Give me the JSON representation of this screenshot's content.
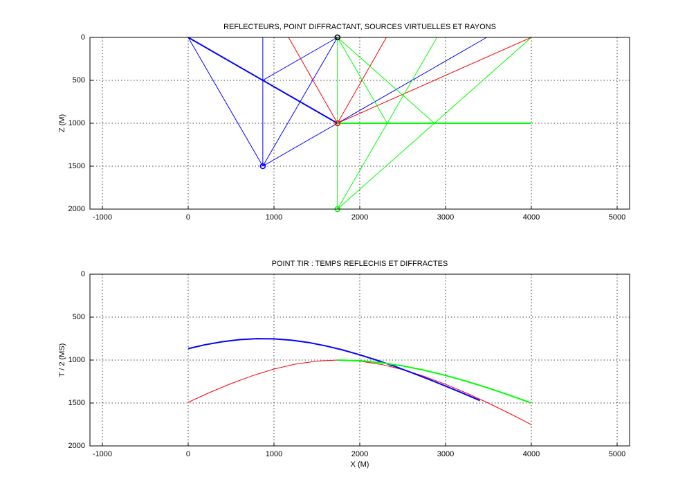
{
  "chart_data": [
    {
      "type": "line",
      "title": "REFLECTEURS, POINT DIFFRACTANT, SOURCES VIRTUELLES ET RAYONS",
      "ylabel": "Z (M)",
      "xlim": [
        -1145,
        5145
      ],
      "ylim": [
        0,
        2000
      ],
      "y_reversed": true,
      "grid": true,
      "xticks": [
        -1000,
        0,
        1000,
        2000,
        3000,
        4000,
        5000
      ],
      "yticks": [
        0,
        500,
        1000,
        1500,
        2000
      ],
      "series": [
        {
          "color": "#0000ff",
          "linewidth": 1,
          "x": [
            0,
            1740,
            null,
            0,
            870,
            null,
            870,
            870,
            null,
            870,
            1740,
            null,
            870,
            1740,
            null,
            870,
            3480
          ],
          "values": [
            0,
            0,
            null,
            0,
            1500,
            null,
            0,
            1500,
            null,
            500,
            0,
            null,
            1500,
            0,
            null,
            1500,
            0
          ]
        },
        {
          "color": "#0000ff",
          "linewidth": 2,
          "x": [
            0,
            1740
          ],
          "values": [
            0,
            1000
          ]
        },
        {
          "color": "#ff0000",
          "linewidth": 1,
          "x": [
            1170,
            1740,
            2310,
            null,
            1740,
            4000
          ],
          "values": [
            0,
            1000,
            0,
            null,
            1000,
            0
          ]
        },
        {
          "color": "#00ff00",
          "linewidth": 1,
          "x": [
            1740,
            1740,
            null,
            1740,
            2320,
            null,
            1740,
            2870,
            null,
            1740,
            4000,
            null,
            1740,
            2900
          ],
          "values": [
            0,
            2000,
            null,
            0,
            1000,
            null,
            0,
            1000,
            null,
            2000,
            0,
            null,
            2000,
            0
          ]
        },
        {
          "color": "#00ff00",
          "linewidth": 2,
          "x": [
            1740,
            4000
          ],
          "values": [
            1000,
            1000
          ]
        },
        {
          "color": "#000000",
          "marker": "o",
          "x": [
            1740
          ],
          "values": [
            0
          ]
        },
        {
          "color": "#0000ff",
          "marker": "o",
          "x": [
            870
          ],
          "values": [
            1500
          ]
        },
        {
          "color": "#ff0000",
          "marker": "o",
          "x": [
            1740
          ],
          "values": [
            1000
          ]
        },
        {
          "color": "#00ff00",
          "marker": "o",
          "x": [
            1740
          ],
          "values": [
            2000
          ]
        }
      ]
    },
    {
      "type": "line",
      "title": "POINT TIR : TEMPS REFLECHIS ET DIFFRACTES",
      "xlabel": "X (M)",
      "ylabel": "T / 2 (MS)",
      "xlim": [
        -1145,
        5145
      ],
      "ylim": [
        0,
        2000
      ],
      "y_reversed": true,
      "grid": true,
      "xticks": [
        -1000,
        0,
        1000,
        2000,
        3000,
        4000,
        5000
      ],
      "yticks": [
        0,
        500,
        1000,
        1500,
        2000
      ],
      "series": [
        {
          "color": "#ff0000",
          "linewidth": 1,
          "x": [
            0,
            250,
            500,
            750,
            1000,
            1250,
            1500,
            1740,
            2000,
            2250,
            2500,
            2750,
            3000,
            3250,
            3500,
            3750,
            4000
          ],
          "values": [
            1492,
            1378,
            1274,
            1182,
            1105,
            1047,
            1012,
            1000,
            1013,
            1051,
            1111,
            1189,
            1282,
            1387,
            1502,
            1624,
            1752
          ]
        },
        {
          "color": "#0000ff",
          "linewidth": 2,
          "x": [
            0,
            200,
            400,
            600,
            800,
            1000,
            1200,
            1400,
            1600,
            1800,
            2000,
            2200,
            2400,
            2600,
            2800,
            3000,
            3200,
            3400
          ],
          "values": [
            867,
            821,
            786,
            762,
            751,
            753,
            768,
            795,
            834,
            882,
            939,
            1002,
            1071,
            1145,
            1222,
            1303,
            1386,
            1471
          ]
        },
        {
          "color": "#00ff00",
          "linewidth": 2,
          "x": [
            1740,
            2000,
            2250,
            2500,
            2750,
            3000,
            3250,
            3500,
            3750,
            4000
          ],
          "values": [
            1000,
            1008,
            1031,
            1068,
            1118,
            1179,
            1249,
            1326,
            1411,
            1501
          ]
        }
      ]
    }
  ]
}
